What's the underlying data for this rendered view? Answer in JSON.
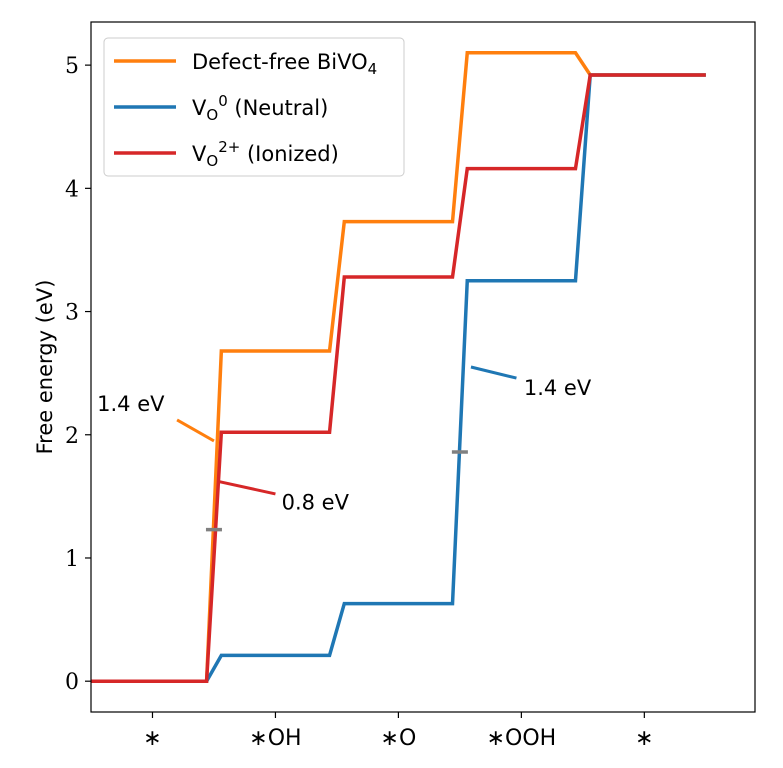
{
  "chart_data": {
    "type": "line",
    "title": "",
    "xlabel": "",
    "ylabel": "Free energy (eV)",
    "ylim": [
      -0.25,
      5.35
    ],
    "xlim": [
      -0.5,
      4.9
    ],
    "yticks": [
      0,
      1,
      2,
      3,
      4,
      5
    ],
    "ytick_labels": [
      "0",
      "1",
      "2",
      "3",
      "4",
      "5"
    ],
    "xtick_positions": [
      0,
      1,
      2,
      3,
      4
    ],
    "xtick_labels": [
      "∗",
      "∗OH",
      "∗O",
      "∗OOH",
      "∗"
    ],
    "step_width": 0.5,
    "legend_position": "top-left",
    "series": [
      {
        "name": "Defect-free BiVO",
        "name_sub": "4",
        "name_sup": "",
        "color": "#ff7f0e",
        "steps": [
          {
            "x": [
              -0.5,
              0.5
            ],
            "y": 0.0
          },
          {
            "x": [
              0.5,
              1.5
            ],
            "y": 2.68
          },
          {
            "x": [
              1.5,
              2.5
            ],
            "y": 3.73
          },
          {
            "x": [
              2.5,
              3.5
            ],
            "y": 5.1
          },
          {
            "x": [
              3.5,
              4.5
            ],
            "y": 4.92
          }
        ]
      },
      {
        "name": "V",
        "name_sub": "O",
        "name_sup": "0",
        "name_suffix": " (Neutral)",
        "color": "#1f77b4",
        "steps": [
          {
            "x": [
              -0.5,
              0.5
            ],
            "y": 0.0
          },
          {
            "x": [
              0.5,
              1.5
            ],
            "y": 0.21
          },
          {
            "x": [
              1.5,
              2.5
            ],
            "y": 0.63
          },
          {
            "x": [
              2.5,
              3.5
            ],
            "y": 3.25
          },
          {
            "x": [
              3.5,
              4.5
            ],
            "y": 4.92
          }
        ]
      },
      {
        "name": "V",
        "name_sub": "O",
        "name_sup": "2+",
        "name_suffix": " (Ionized)",
        "color": "#d62728",
        "steps": [
          {
            "x": [
              -0.5,
              0.5
            ],
            "y": 0.0
          },
          {
            "x": [
              0.5,
              1.5
            ],
            "y": 2.02
          },
          {
            "x": [
              1.5,
              2.5
            ],
            "y": 3.28
          },
          {
            "x": [
              2.5,
              3.5
            ],
            "y": 4.16
          },
          {
            "x": [
              3.5,
              4.5
            ],
            "y": 4.92
          }
        ]
      }
    ],
    "markers": [
      {
        "x": 0.5,
        "y": 1.23,
        "color": "#808080"
      },
      {
        "x": 2.5,
        "y": 1.86,
        "color": "#808080"
      }
    ],
    "annotations": [
      {
        "text": "1.4 eV",
        "color": "#ff7f0e",
        "from": [
          0.5,
          1.95
        ],
        "to": [
          0.2,
          2.12
        ],
        "text_at": [
          -0.45,
          2.25
        ]
      },
      {
        "text": "0.8 eV",
        "color": "#d62728",
        "from": [
          0.54,
          1.62
        ],
        "to": [
          1.0,
          1.52
        ],
        "text_at": [
          1.05,
          1.45
        ]
      },
      {
        "text": "1.4 eV",
        "color": "#1f77b4",
        "from": [
          2.59,
          2.55
        ],
        "to": [
          2.96,
          2.46
        ],
        "text_at": [
          3.02,
          2.38
        ]
      }
    ]
  }
}
